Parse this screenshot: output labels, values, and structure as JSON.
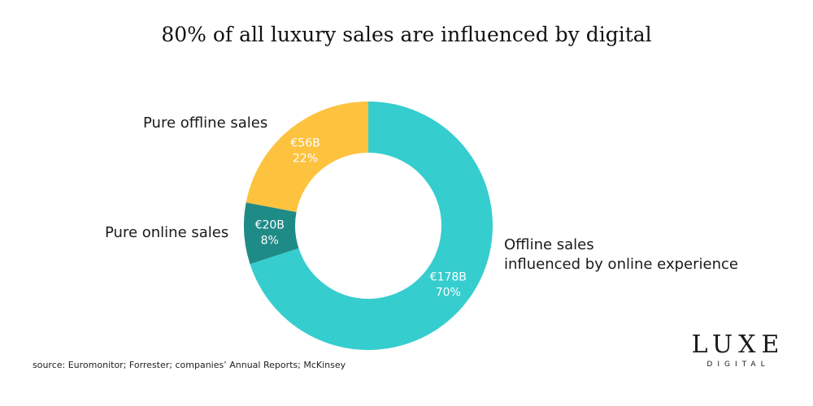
{
  "title": "80% of all luxury sales are influenced by digital",
  "chart_data": {
    "type": "pie",
    "style": "donut",
    "title": "80% of all luxury sales are influenced by digital",
    "slices": [
      {
        "label": "Offline sales influenced by online experience",
        "label_lines": [
          "Offline sales",
          "influenced by online experience"
        ],
        "value_label": "€178B",
        "percent_label": "70%",
        "value": 178,
        "percent": 70,
        "color": "#36cdcf"
      },
      {
        "label": "Pure online sales",
        "label_lines": [
          "Pure online sales"
        ],
        "value_label": "€20B",
        "percent_label": "8%",
        "value": 20,
        "percent": 8,
        "color": "#1f8b87"
      },
      {
        "label": "Pure offline sales",
        "label_lines": [
          "Pure offline sales"
        ],
        "value_label": "€56B",
        "percent_label": "22%",
        "value": 56,
        "percent": 22,
        "color": "#fdc23e"
      }
    ]
  },
  "source": "source: Euromonitor; Forrester; companies’ Annual Reports; McKinsey",
  "brand": {
    "name": "LUXE",
    "sub": "DIGITAL"
  }
}
